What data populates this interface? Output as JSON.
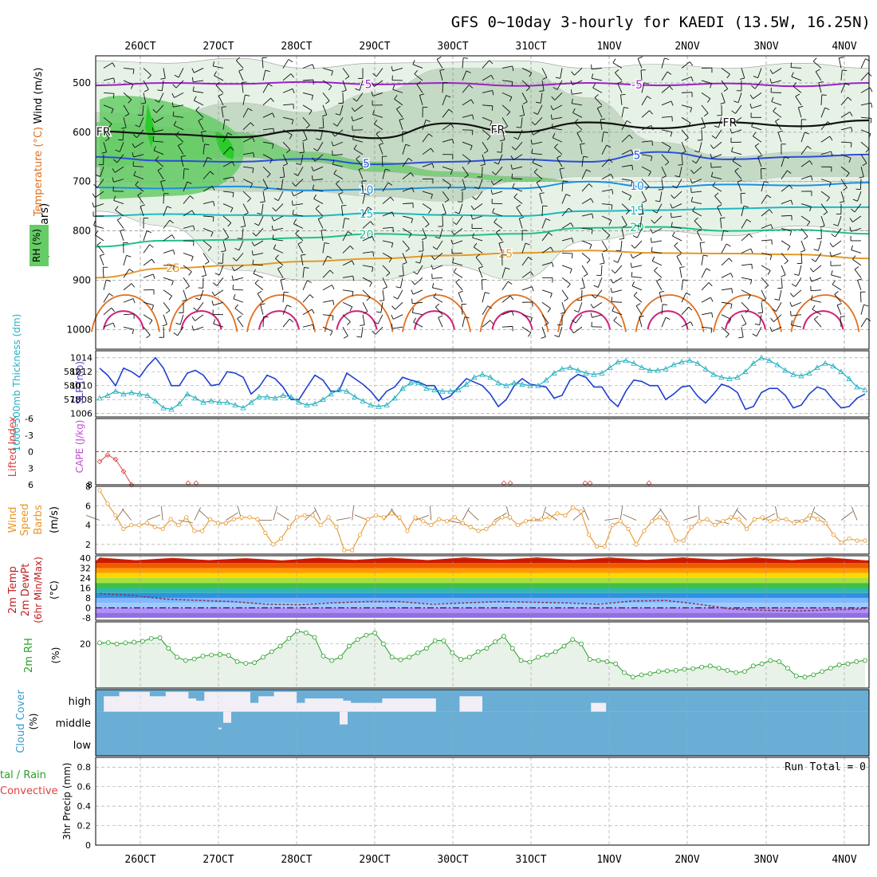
{
  "title": "GFS 0~10day 3-hourly for KAEDI (13.5W, 16.25N)",
  "colors": {
    "temp_purple": "#9a22c8",
    "temp_blue": "#2a4fd8",
    "temp_lightblue": "#1e90e0",
    "temp_teal": "#1fb8c0",
    "temp_green": "#22c08a",
    "temp_orange": "#e49a2a",
    "temp_darkorange": "#e07020",
    "temp_magenta": "#d0207a",
    "rh_light": "#e6f2e6",
    "rh_mid": "#a9c7a9",
    "rh_green": "#66cc66",
    "slp": "#1e3fd0",
    "thickness": "#20b0c0",
    "lifted_index": "#e04040",
    "wind": "#e8962a",
    "rh2m": "#2aa02a",
    "cloud": "#6aaed6",
    "cloud_bg": "#f2eef6"
  },
  "chart_data": [
    {
      "type": "heatmap",
      "name": "vertical_cross_section",
      "ylabel": "(millibars)",
      "legend_labels": [
        "Wind (m/s)",
        "Temperature (°C)",
        "RH (%)"
      ],
      "y_ticks": [
        500,
        600,
        700,
        800,
        900,
        1000
      ],
      "ylim": [
        1040,
        445
      ],
      "x_ticks": [
        "26OCT",
        "27OCT",
        "28OCT",
        "29OCT",
        "30OCT",
        "31OCT",
        "1NOV",
        "2NOV",
        "3NOV",
        "4NOV"
      ],
      "temperature_contours": [
        {
          "label": "-5",
          "color": "#9a22c8",
          "pressure": [
            505,
            500,
            502,
            498,
            503,
            500,
            506,
            500,
            505,
            501,
            507,
            500
          ]
        },
        {
          "label": "FR",
          "color": "#111111",
          "pressure": [
            598,
            604,
            610,
            596,
            612,
            582,
            600,
            580,
            592,
            580,
            588,
            576
          ]
        },
        {
          "label": "5",
          "color": "#2a4fd8",
          "pressure": [
            650,
            658,
            660,
            654,
            665,
            660,
            655,
            660,
            640,
            655,
            650,
            645
          ]
        },
        {
          "label": "10",
          "color": "#1e90e0",
          "pressure": [
            712,
            714,
            710,
            718,
            716,
            712,
            714,
            700,
            712,
            706,
            708,
            702
          ]
        },
        {
          "label": "15",
          "color": "#1fb8c0",
          "pressure": [
            770,
            766,
            768,
            770,
            764,
            768,
            770,
            760,
            758,
            755,
            752,
            752
          ]
        },
        {
          "label": "20",
          "color": "#22c08a",
          "pressure": [
            832,
            820,
            818,
            814,
            806,
            810,
            806,
            794,
            792,
            800,
            798,
            806
          ]
        },
        {
          "label": "25",
          "color": "#e49a2a",
          "pressure": [
            895,
            876,
            870,
            862,
            856,
            850,
            845,
            840,
            845,
            846,
            848,
            856
          ]
        }
      ],
      "rh_contours": [
        "10",
        "30",
        "50",
        "60",
        "30",
        "10"
      ]
    },
    {
      "type": "line",
      "name": "slp_thickness",
      "ylabel_left": "1000-500mb Thickness (dm)",
      "ylabel_right": "SLP (mb)",
      "left_ticks": [
        578,
        580,
        582
      ],
      "right_ticks": [
        1006,
        1008,
        1010,
        1012,
        1014
      ],
      "ylim_right": [
        1005.5,
        1015
      ],
      "series": [
        {
          "name": "SLP (mb)",
          "color": "#1e3fd0",
          "values": [
            1012.5,
            1011.5,
            1010.0,
            1012.5,
            1012.0,
            1011.2,
            1012.8,
            1014.0,
            1012.5,
            1010.0,
            1010.0,
            1011.8,
            1012.2,
            1011.5,
            1010.0,
            1010.2,
            1012.0,
            1011.8,
            1011.2,
            1008.8,
            1009.8,
            1011.5,
            1011.0,
            1009.8,
            1008.0,
            1008.0,
            1009.8,
            1011.5,
            1010.8,
            1009.2,
            1009.2,
            1011.8,
            1011.0,
            1010.2,
            1009.2,
            1007.8,
            1009.2,
            1009.8,
            1011.2,
            1010.8,
            1010.5,
            1010.0,
            1010.0,
            1008.0,
            1008.5,
            1009.8,
            1011.0,
            1010.5,
            1010.0,
            1008.8,
            1007.0,
            1008.0,
            1010.0,
            1011.0,
            1010.2,
            1010.0,
            1009.8,
            1008.2,
            1008.6,
            1010.8,
            1011.6,
            1011.2,
            1009.8,
            1009.8,
            1008.0,
            1007.0,
            1009.2,
            1010.8,
            1010.6,
            1010.0,
            1010.0,
            1008.0,
            1008.8,
            1009.8,
            1010.0,
            1008.5,
            1007.5,
            1008.8,
            1010.2,
            1009.8,
            1009.0,
            1006.6,
            1007.0,
            1009.0,
            1009.6,
            1009.6,
            1008.6,
            1006.8,
            1007.2,
            1008.8,
            1009.8,
            1009.4,
            1008.0,
            1006.8,
            1007.0,
            1008.2,
            1008.8
          ]
        },
        {
          "name": "1000-500mb Thickness (dm)",
          "color": "#20b0c0",
          "values": [
            1008.2,
            1008.6,
            1009.2,
            1008.8,
            1009.0,
            1008.8,
            1008.6,
            1007.8,
            1006.8,
            1006.6,
            1007.4,
            1008.8,
            1008.2,
            1007.6,
            1007.8,
            1007.6,
            1007.6,
            1007.2,
            1006.8,
            1007.6,
            1008.4,
            1008.4,
            1008.2,
            1008.6,
            1008.4,
            1007.6,
            1007.2,
            1007.4,
            1008.0,
            1008.8,
            1009.4,
            1009.2,
            1008.4,
            1007.8,
            1007.2,
            1007.0,
            1007.2,
            1008.2,
            1009.6,
            1010.4,
            1010.4,
            1009.6,
            1009.4,
            1009.2,
            1009.2,
            1009.4,
            1010.2,
            1011.2,
            1011.6,
            1011.2,
            1010.4,
            1010.0,
            1010.4,
            1010.2,
            1010.0,
            1010.0,
            1010.8,
            1011.8,
            1012.4,
            1012.6,
            1012.2,
            1011.8,
            1011.6,
            1011.8,
            1012.6,
            1013.4,
            1013.6,
            1013.2,
            1012.6,
            1012.2,
            1012.2,
            1012.4,
            1013.0,
            1013.4,
            1013.6,
            1013.2,
            1012.4,
            1011.6,
            1011.2,
            1011.0,
            1011.2,
            1012.0,
            1013.2,
            1014.0,
            1013.6,
            1013.0,
            1012.2,
            1011.6,
            1011.4,
            1011.8,
            1012.6,
            1013.2,
            1012.8,
            1012.0,
            1011.0,
            1009.8,
            1009.4
          ]
        }
      ]
    },
    {
      "type": "line",
      "name": "lifted_index_cape",
      "ylabel_left": "Lifted Index",
      "ylabel_right": "CAPE (J/kg)",
      "left_ticks": [
        "-6",
        "-3",
        "0",
        "3",
        "6"
      ],
      "right_tick": "8",
      "ylim": [
        -6,
        6
      ],
      "series": [
        {
          "name": "Lifted Index",
          "color": "#e04040",
          "values": [
            1.8,
            0.6,
            1.4,
            3.6,
            6.0
          ]
        }
      ]
    },
    {
      "type": "line",
      "name": "wind10m",
      "ylabel": "10m Wind Speed & Barbs (m/s)",
      "y_ticks": [
        2,
        4,
        6
      ],
      "ylim": [
        1,
        8
      ],
      "series": [
        {
          "name": "10m Wind Speed",
          "color": "#e8962a",
          "values": [
            7.6,
            6.2,
            5.0,
            3.6,
            4.0,
            4.0,
            4.2,
            3.8,
            3.6,
            4.6,
            4.0,
            4.8,
            3.4,
            3.4,
            4.6,
            4.2,
            4.2,
            4.6,
            4.8,
            4.8,
            4.6,
            3.2,
            2.0,
            2.6,
            3.8,
            4.8,
            5.0,
            5.0,
            4.0,
            4.8,
            3.8,
            1.4,
            1.4,
            3.0,
            4.6,
            5.0,
            4.8,
            5.2,
            4.8,
            3.4,
            4.8,
            4.4,
            4.0,
            4.6,
            4.4,
            4.8,
            4.2,
            3.8,
            3.4,
            3.6,
            4.2,
            4.8,
            4.8,
            4.0,
            4.4,
            4.6,
            4.6,
            4.8,
            5.2,
            5.0,
            5.8,
            5.4,
            3.0,
            1.8,
            1.8,
            4.0,
            4.4,
            3.6,
            2.0,
            3.4,
            4.4,
            4.8,
            4.2,
            2.4,
            2.4,
            3.8,
            4.4,
            4.6,
            4.0,
            4.4,
            4.8,
            4.6,
            3.6,
            4.6,
            4.8,
            4.4,
            4.6,
            4.6,
            4.2,
            4.4,
            5.0,
            4.6,
            4.2,
            3.0,
            2.2,
            2.6,
            2.4,
            2.4
          ]
        }
      ]
    },
    {
      "type": "area",
      "name": "temp2m",
      "ylabel": "2m Temp 2m DewPt (6hr Min/Max) (°C)",
      "y_ticks": [
        40,
        32,
        24,
        16,
        8,
        0,
        -8
      ],
      "ylim": [
        -10,
        42
      ],
      "series": [
        {
          "name": "2m Temp max",
          "color": "#b00000",
          "values": [
            40.5,
            38.4,
            40.2,
            38.5,
            40.0,
            38.2,
            40.3,
            38.6,
            40.4,
            38.5,
            40.5,
            38.8,
            40.5,
            38.6,
            40.6,
            38.6,
            40.5,
            38.7,
            40.6,
            38.5,
            40.5,
            38.3
          ]
        },
        {
          "name": "2m DewPt",
          "color": "#8a3a5a",
          "values": [
            11.5,
            10.0,
            7.0,
            6.0,
            5.0,
            3.0,
            2.5,
            4.0,
            5.0,
            5.0,
            3.0,
            4.0,
            5.0,
            4.5,
            4.0,
            3.0,
            5.5,
            6.0,
            3.0,
            -1.0,
            -2.0,
            -2.5,
            -1.5,
            -1.0
          ]
        }
      ]
    },
    {
      "type": "area",
      "name": "rh2m",
      "ylabel": "2m RH (%)",
      "y_ticks": [
        20
      ],
      "ylim": [
        0,
        30
      ],
      "series": [
        {
          "name": "2m RH",
          "color": "#2aa02a",
          "values": [
            20.5,
            20.6,
            20.0,
            20.5,
            20.8,
            21.2,
            22.5,
            22.8,
            18.0,
            14.0,
            12.5,
            13.2,
            14.5,
            15.0,
            15.2,
            14.8,
            12.0,
            11.2,
            11.5,
            14.0,
            16.5,
            19.0,
            22.5,
            25.8,
            25.0,
            23.0,
            14.5,
            12.5,
            14.0,
            19.0,
            22.0,
            24.0,
            25.0,
            20.0,
            14.0,
            12.8,
            14.0,
            16.0,
            18.0,
            21.5,
            21.5,
            16.0,
            13.0,
            14.0,
            16.5,
            18.0,
            21.0,
            23.5,
            18.0,
            12.5,
            11.8,
            14.0,
            15.0,
            16.5,
            19.0,
            22.0,
            20.0,
            13.0,
            12.5,
            12.0,
            11.0,
            7.0,
            5.0,
            6.0,
            6.5,
            7.5,
            7.8,
            8.0,
            8.5,
            8.8,
            9.5,
            10.0,
            9.0,
            8.0,
            7.0,
            7.5,
            10.0,
            11.0,
            12.5,
            12.0,
            9.0,
            5.5,
            5.0,
            6.0,
            7.5,
            9.0,
            10.5,
            11.0,
            12.0,
            12.5
          ]
        }
      ]
    },
    {
      "type": "bar",
      "name": "cloud_cover",
      "ylabel": "Cloud Cover (%)",
      "levels": [
        "high",
        "middle",
        "low"
      ],
      "series": [
        {
          "name": "high",
          "values": [
            100,
            30,
            30,
            10,
            10,
            10,
            10,
            30,
            30,
            10,
            10,
            10,
            40,
            50,
            10,
            10,
            10,
            10,
            10,
            10,
            60,
            30,
            30,
            10,
            10,
            10,
            60,
            40,
            40,
            40,
            40,
            40,
            50,
            60,
            60,
            60,
            60,
            40,
            40,
            40,
            40,
            40,
            40,
            40,
            100,
            100,
            100,
            30,
            30,
            30,
            100,
            100,
            100,
            100,
            100,
            100,
            100,
            100,
            100,
            100,
            100,
            100,
            100,
            100,
            60,
            60,
            100,
            100,
            100,
            100,
            100,
            100,
            100,
            100,
            100,
            100,
            100,
            100,
            100,
            100,
            100,
            100,
            100,
            100,
            100,
            100,
            100,
            100,
            100,
            100,
            100,
            100,
            100,
            100,
            100,
            100,
            100,
            100,
            100,
            100
          ]
        }
      ]
    },
    {
      "type": "bar",
      "name": "precip",
      "ylabel": "3hr Precip (mm)",
      "legend_labels": [
        "Total / Rain",
        "Convective"
      ],
      "annotation": "Run Total = 0",
      "y_ticks": [
        "0",
        "0.2",
        "0.4",
        "0.6",
        "0.8"
      ],
      "ylim": [
        0,
        0.9
      ],
      "values": []
    }
  ]
}
